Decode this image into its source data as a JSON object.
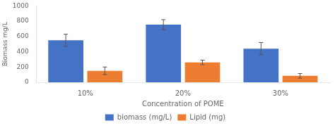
{
  "chart_data": {
    "type": "bar",
    "categories": [
      "10%",
      "20%",
      "30%"
    ],
    "series": [
      {
        "name": "biomass (mg/L)",
        "color": "#4472C4",
        "values": [
          550,
          755,
          440
        ],
        "errors": [
          80,
          65,
          80
        ]
      },
      {
        "name": "Lipid (mg)",
        "color": "#ED7D31",
        "values": [
          150,
          260,
          85
        ],
        "errors": [
          50,
          30,
          30
        ]
      }
    ],
    "xlabel": "Concentration of POME",
    "ylabel": "Biomass mg/L",
    "ylim": [
      0,
      1000
    ],
    "yticks": [
      0,
      200,
      400,
      600,
      800,
      1000
    ],
    "grid": false,
    "legend": "bottom"
  }
}
